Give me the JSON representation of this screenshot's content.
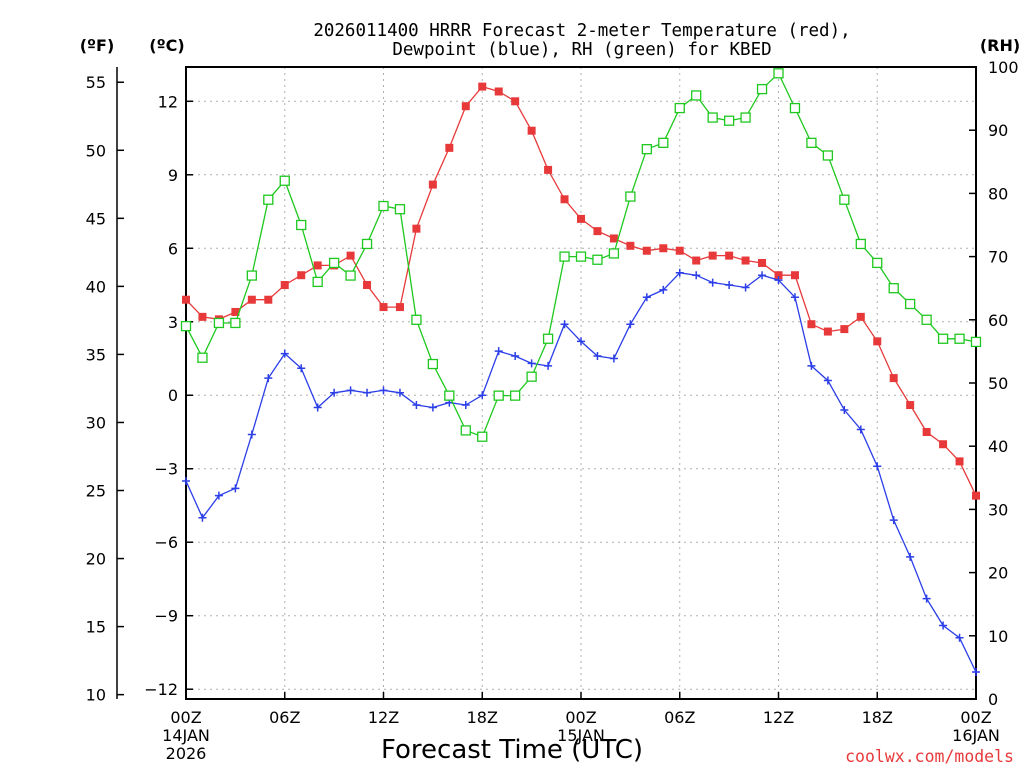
{
  "chart_data": {
    "type": "line",
    "title_line1": "2026011400 HRRR Forecast 2-meter Temperature (red),",
    "title_line2": "Dewpoint (blue), RH (green) for KBED",
    "xlabel": "Forecast Time (UTC)",
    "credit": "coolwx.com/models",
    "unit_labels": {
      "fahrenheit": "(ºF)",
      "celsius": "(ºC)",
      "rh": "(RH)"
    },
    "x_range": [
      0,
      48
    ],
    "y_celsius_range": [
      -12.4,
      13.4
    ],
    "rh_range": [
      0,
      100
    ],
    "grid": true,
    "x_ticks": [
      {
        "x": 0,
        "label": "00Z",
        "sub1": "14JAN",
        "sub2": "2026"
      },
      {
        "x": 6,
        "label": "06Z"
      },
      {
        "x": 12,
        "label": "12Z"
      },
      {
        "x": 18,
        "label": "18Z"
      },
      {
        "x": 24,
        "label": "00Z",
        "sub1": "15JAN"
      },
      {
        "x": 30,
        "label": "06Z"
      },
      {
        "x": 36,
        "label": "12Z"
      },
      {
        "x": 42,
        "label": "18Z"
      },
      {
        "x": 48,
        "label": "00Z",
        "sub1": "16JAN"
      }
    ],
    "celsius_ticks": [
      {
        "v": 12,
        "label": "12"
      },
      {
        "v": 9,
        "label": "9"
      },
      {
        "v": 6,
        "label": "6"
      },
      {
        "v": 3,
        "label": "3"
      },
      {
        "v": 0,
        "label": "0"
      },
      {
        "v": -3,
        "label": "−3"
      },
      {
        "v": -6,
        "label": "−6"
      },
      {
        "v": -9,
        "label": "−9"
      },
      {
        "v": -12,
        "label": "−12"
      }
    ],
    "fahrenheit_ticks": [
      {
        "v": 55,
        "label": "55"
      },
      {
        "v": 50,
        "label": "50"
      },
      {
        "v": 45,
        "label": "45"
      },
      {
        "v": 40,
        "label": "40"
      },
      {
        "v": 35,
        "label": "35"
      },
      {
        "v": 30,
        "label": "30"
      },
      {
        "v": 25,
        "label": "25"
      },
      {
        "v": 20,
        "label": "20"
      },
      {
        "v": 15,
        "label": "15"
      },
      {
        "v": 10,
        "label": "10"
      }
    ],
    "rh_ticks": [
      {
        "v": 100,
        "label": "100"
      },
      {
        "v": 90,
        "label": "90"
      },
      {
        "v": 80,
        "label": "80"
      },
      {
        "v": 70,
        "label": "70"
      },
      {
        "v": 60,
        "label": "60"
      },
      {
        "v": 50,
        "label": "50"
      },
      {
        "v": 40,
        "label": "40"
      },
      {
        "v": 30,
        "label": "30"
      },
      {
        "v": 20,
        "label": "20"
      },
      {
        "v": 10,
        "label": "10"
      },
      {
        "v": 0,
        "label": "0"
      }
    ],
    "series": [
      {
        "name": "Temperature",
        "unit": "C",
        "color": "#e8393a",
        "marker": "filled-square",
        "values": [
          3.9,
          3.2,
          3.1,
          3.4,
          3.9,
          3.9,
          4.5,
          4.9,
          5.3,
          5.3,
          5.7,
          4.5,
          3.6,
          3.6,
          6.8,
          8.6,
          10.1,
          11.8,
          12.6,
          12.4,
          12.0,
          10.8,
          9.2,
          8.0,
          7.2,
          6.7,
          6.4,
          6.1,
          5.9,
          6.0,
          5.9,
          5.5,
          5.7,
          5.7,
          5.5,
          5.4,
          4.9,
          4.9,
          2.9,
          2.6,
          2.7,
          3.2,
          2.2,
          0.7,
          -0.4,
          -1.5,
          -2.0,
          -2.7,
          -4.1
        ]
      },
      {
        "name": "Dewpoint",
        "unit": "C",
        "color": "#2b3ee8",
        "marker": "plus",
        "values": [
          -3.5,
          -5.0,
          -4.1,
          -3.8,
          -1.6,
          0.7,
          1.7,
          1.1,
          -0.5,
          0.1,
          0.2,
          0.1,
          0.2,
          0.1,
          -0.4,
          -0.5,
          -0.3,
          -0.4,
          0.0,
          1.8,
          1.6,
          1.3,
          1.2,
          2.9,
          2.2,
          1.6,
          1.5,
          2.9,
          4.0,
          4.3,
          5.0,
          4.9,
          4.6,
          4.5,
          4.4,
          4.9,
          4.7,
          4.0,
          1.2,
          0.6,
          -0.6,
          -1.4,
          -2.9,
          -5.1,
          -6.6,
          -8.3,
          -9.4,
          -9.9,
          -11.3
        ]
      },
      {
        "name": "RH",
        "unit": "%",
        "color": "#1ec81e",
        "marker": "open-square",
        "values": [
          59,
          54,
          59.5,
          59.5,
          67,
          79,
          82,
          75,
          66,
          69,
          67,
          72,
          78,
          77.5,
          60,
          53,
          48,
          42.5,
          41.5,
          48,
          48,
          51,
          57,
          70,
          70,
          69.5,
          70.5,
          79.5,
          87,
          88,
          93.5,
          95.5,
          92,
          91.5,
          92,
          96.5,
          99,
          93.5,
          88,
          86,
          79,
          72,
          69,
          65,
          62.5,
          60,
          57,
          57,
          56.5
        ]
      }
    ]
  }
}
